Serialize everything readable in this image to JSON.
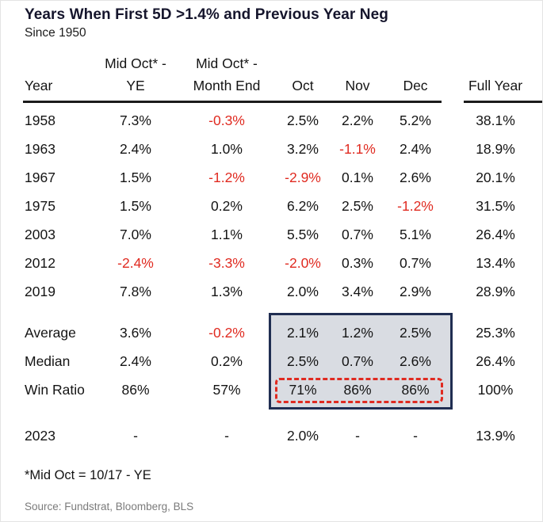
{
  "title": "Years When First 5D >1.4% and Previous Year Neg",
  "subtitle": "Since 1950",
  "chart_data": {
    "type": "table",
    "title": "Years When First 5D >1.4% and Previous Year Neg",
    "subtitle": "Since 1950",
    "header_top": [
      "",
      "Mid Oct* -",
      "Mid Oct* -",
      "",
      "",
      "",
      ""
    ],
    "columns": [
      "Year",
      "YE",
      "Month End",
      "Oct",
      "Nov",
      "Dec",
      "Full Year"
    ],
    "rows": [
      {
        "label": "1958",
        "values": [
          "7.3%",
          "-0.3%",
          "2.5%",
          "2.2%",
          "5.2%",
          "38.1%"
        ]
      },
      {
        "label": "1963",
        "values": [
          "2.4%",
          "1.0%",
          "3.2%",
          "-1.1%",
          "2.4%",
          "18.9%"
        ]
      },
      {
        "label": "1967",
        "values": [
          "1.5%",
          "-1.2%",
          "-2.9%",
          "0.1%",
          "2.6%",
          "20.1%"
        ]
      },
      {
        "label": "1975",
        "values": [
          "1.5%",
          "0.2%",
          "6.2%",
          "2.5%",
          "-1.2%",
          "31.5%"
        ]
      },
      {
        "label": "2003",
        "values": [
          "7.0%",
          "1.1%",
          "5.5%",
          "0.7%",
          "5.1%",
          "26.4%"
        ]
      },
      {
        "label": "2012",
        "values": [
          "-2.4%",
          "-3.3%",
          "-2.0%",
          "0.3%",
          "0.7%",
          "13.4%"
        ]
      },
      {
        "label": "2019",
        "values": [
          "7.8%",
          "1.3%",
          "2.0%",
          "3.4%",
          "2.9%",
          "28.9%"
        ]
      }
    ],
    "summary_rows": [
      {
        "label": "Average",
        "values": [
          "3.6%",
          "-0.2%",
          "2.1%",
          "1.2%",
          "2.5%",
          "25.3%"
        ]
      },
      {
        "label": "Median",
        "values": [
          "2.4%",
          "0.2%",
          "2.5%",
          "0.7%",
          "2.6%",
          "26.4%"
        ]
      },
      {
        "label": "Win Ratio",
        "values": [
          "86%",
          "57%",
          "71%",
          "86%",
          "86%",
          "100%"
        ]
      }
    ],
    "current_row": {
      "label": "2023",
      "values": [
        "-",
        "-",
        "2.0%",
        "-",
        "-",
        "13.9%"
      ]
    },
    "layout_hints": {
      "highlighted_region": "Oct, Nov, Dec columns of Average/Median/Win Ratio rows boxed with dark border and gray fill",
      "dashed_region": "Win Ratio Oct/Nov/Dec values outlined with red dashed box",
      "negative_values_color": "red"
    }
  },
  "footnote": "*Mid Oct = 10/17 - YE",
  "source": "Source: Fundstrat, Bloomberg, BLS",
  "colors": {
    "title": "#15152c",
    "negative": "#e02a20",
    "highlight_fill": "#d9dce2",
    "highlight_border": "#202e52",
    "dashed_box_border": "#e02a20",
    "source_text": "#7b7b7b"
  }
}
